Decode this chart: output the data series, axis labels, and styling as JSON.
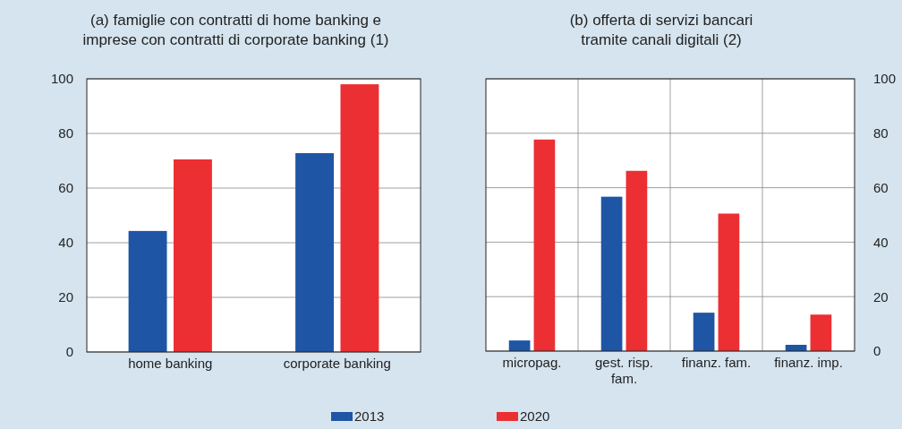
{
  "chart_data": [
    {
      "type": "bar",
      "title": "(a) famiglie con contratti di home banking e\nimprese con contratti di corporate banking (1)",
      "categories": [
        "home banking",
        "corporate banking"
      ],
      "series": [
        {
          "name": "2013",
          "color": "#1f55a5",
          "values": [
            44.3,
            72.8
          ]
        },
        {
          "name": "2020",
          "color": "#ec2f32",
          "values": [
            70.5,
            98
          ]
        }
      ],
      "ylim": [
        0,
        100
      ],
      "yticks": [
        0,
        20,
        40,
        60,
        80,
        100
      ],
      "grid": "y",
      "legend": "bottom"
    },
    {
      "type": "bar",
      "title": "(b) offerta di servizi bancari\ntramite canali digitali (2)",
      "categories": [
        "micropag.",
        "gest. risp.\nfam.",
        "finanz. fam.",
        "finanz. imp."
      ],
      "series": [
        {
          "name": "2013",
          "color": "#1f55a5",
          "values": [
            3.9,
            56.7,
            14.1,
            2.3
          ]
        },
        {
          "name": "2020",
          "color": "#ec2f32",
          "values": [
            77.7,
            66.2,
            50.5,
            13.4
          ]
        }
      ],
      "ylim": [
        0,
        100
      ],
      "yticks": [
        0,
        20,
        40,
        60,
        80,
        100
      ],
      "grid": true
    }
  ]
}
